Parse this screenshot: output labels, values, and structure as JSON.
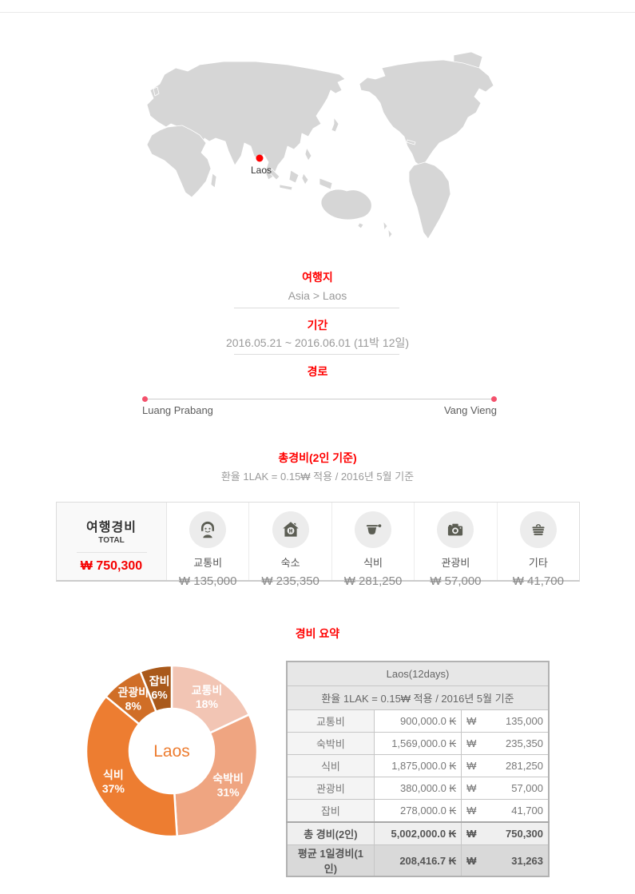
{
  "colors": {
    "accent_red": "#ff0000",
    "price_red": "#f50000",
    "route_dot": "#f4516c",
    "map_land": "#d6d6d6",
    "map_marker": "#ff0000",
    "icon_glyph": "#5c5e54"
  },
  "map": {
    "marker_label": "Laos"
  },
  "destination": {
    "title": "여행지",
    "value": "Asia > Laos"
  },
  "period": {
    "title": "기간",
    "value": "2016.05.21 ~ 2016.06.01 (11박 12일)"
  },
  "route": {
    "title": "경로",
    "start": "Luang Prabang",
    "end": "Vang Vieng"
  },
  "total_section": {
    "title": "총경비(2인 기준)",
    "note": "환율 1LAK = 0.15₩ 적용 / 2016년 5월 기준"
  },
  "expense_box": {
    "total_label": "여행경비",
    "total_sub": "TOTAL",
    "total_value": "₩ 750,300",
    "items": [
      {
        "icon": "person-icon",
        "label": "교통비",
        "value": "₩ 135,000"
      },
      {
        "icon": "house-icon",
        "label": "숙소",
        "value": "₩ 235,350"
      },
      {
        "icon": "cup-icon",
        "label": "식비",
        "value": "₩ 281,250"
      },
      {
        "icon": "camera-icon",
        "label": "관광비",
        "value": "₩ 57,000"
      },
      {
        "icon": "basket-icon",
        "label": "기타",
        "value": "₩ 41,700"
      }
    ]
  },
  "summary": {
    "title": "경비 요약"
  },
  "chart_data": {
    "type": "pie",
    "subtype": "donut",
    "center_label": "Laos",
    "categories": [
      "교통비",
      "숙박비",
      "식비",
      "관광비",
      "잡비"
    ],
    "values": [
      18,
      31,
      37,
      8,
      6
    ],
    "unit": "%",
    "colors": [
      "#f2c5b4",
      "#efa581",
      "#ed7d31",
      "#d06e27",
      "#a9591b"
    ],
    "start_angle_deg": 0,
    "direction": "clockwise",
    "label_color": "#ffffff",
    "center_label_color": "#ed7d31"
  },
  "summary_table": {
    "title": "Laos(12days)",
    "subtitle": "환율 1LAK = 0.15₩ 적용 / 2016년 5월 기준",
    "rows": [
      {
        "label": "교통비",
        "lak": "900,000.0",
        "lak_unit": "₭",
        "won_unit": "₩",
        "won": "135,000",
        "style": "normal"
      },
      {
        "label": "숙박비",
        "lak": "1,569,000.0",
        "lak_unit": "₭",
        "won_unit": "₩",
        "won": "235,350",
        "style": "normal"
      },
      {
        "label": "식비",
        "lak": "1,875,000.0",
        "lak_unit": "₭",
        "won_unit": "₩",
        "won": "281,250",
        "style": "normal"
      },
      {
        "label": "관광비",
        "lak": "380,000.0",
        "lak_unit": "₭",
        "won_unit": "₩",
        "won": "57,000",
        "style": "normal"
      },
      {
        "label": "잡비",
        "lak": "278,000.0",
        "lak_unit": "₭",
        "won_unit": "₩",
        "won": "41,700",
        "style": "normal"
      },
      {
        "label": "총 경비(2인)",
        "lak": "5,002,000.0",
        "lak_unit": "₭",
        "won_unit": "₩",
        "won": "750,300",
        "style": "total"
      },
      {
        "label": "평균 1일경비(1인)",
        "lak": "208,416.7",
        "lak_unit": "₭",
        "won_unit": "₩",
        "won": "31,263",
        "style": "avg"
      }
    ]
  }
}
